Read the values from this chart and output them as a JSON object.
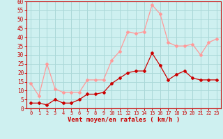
{
  "hours": [
    0,
    1,
    2,
    3,
    4,
    5,
    6,
    7,
    8,
    9,
    10,
    11,
    12,
    13,
    14,
    15,
    16,
    17,
    18,
    19,
    20,
    21,
    22,
    23
  ],
  "wind_mean": [
    3,
    3,
    2,
    5,
    3,
    3,
    5,
    8,
    8,
    9,
    14,
    17,
    20,
    21,
    21,
    31,
    24,
    16,
    19,
    21,
    17,
    16,
    16,
    16
  ],
  "wind_gust": [
    14,
    7,
    25,
    11,
    9,
    9,
    9,
    16,
    16,
    16,
    27,
    32,
    43,
    42,
    43,
    58,
    53,
    37,
    35,
    35,
    36,
    30,
    37,
    39
  ],
  "background_color": "#cef0f0",
  "grid_color": "#aad8d8",
  "mean_color": "#cc0000",
  "gust_color": "#ff9999",
  "xlabel": "Vent moyen/en rafales ( km/h )",
  "xlabel_color": "#cc0000",
  "tick_color": "#cc0000",
  "ylim": [
    0,
    60
  ],
  "yticks": [
    0,
    5,
    10,
    15,
    20,
    25,
    30,
    35,
    40,
    45,
    50,
    55,
    60
  ]
}
